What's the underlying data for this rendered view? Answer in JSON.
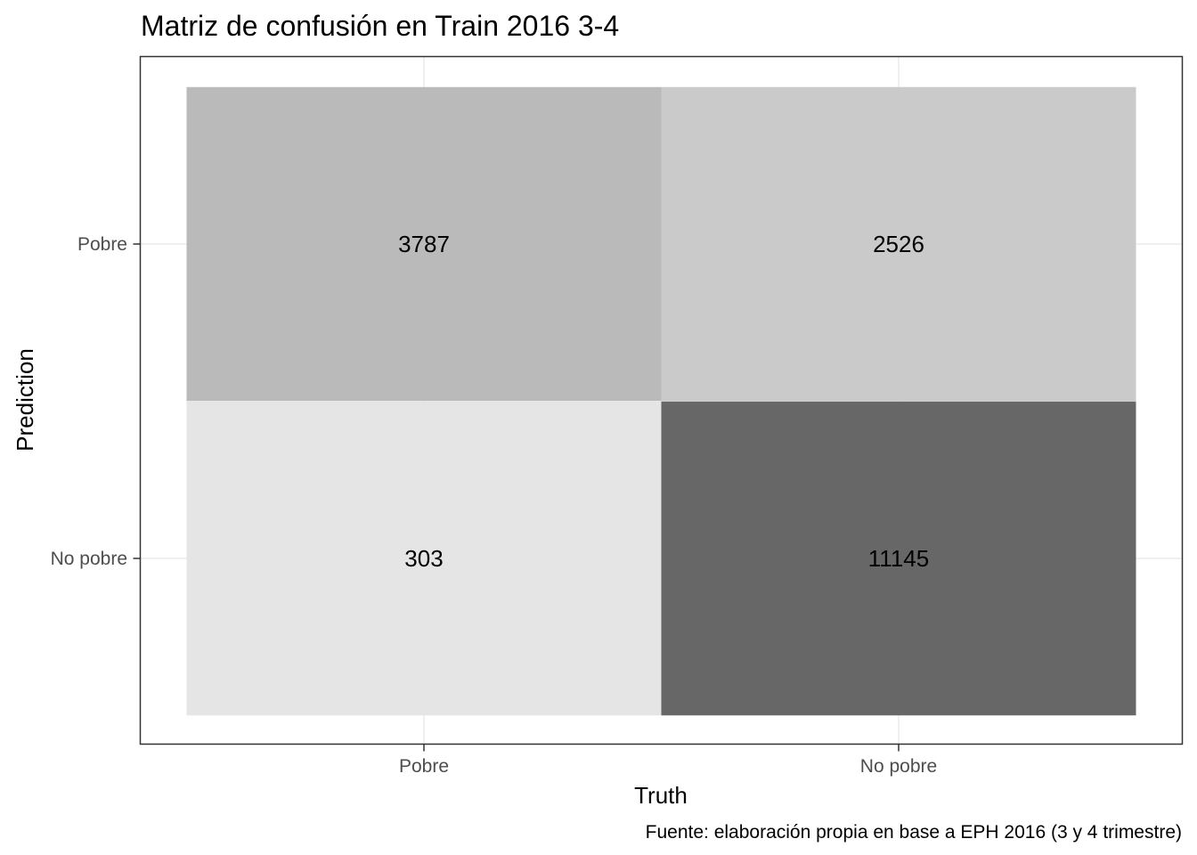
{
  "chart_data": {
    "type": "heatmap",
    "title": "Matriz de confusión en Train 2016 3-4",
    "xlabel": "Truth",
    "ylabel": "Prediction",
    "caption": "Fuente: elaboración propia en base a EPH 2016 (3 y 4 trimestre)",
    "x_categories": [
      "Pobre",
      "No pobre"
    ],
    "y_categories": [
      "Pobre",
      "No pobre"
    ],
    "cells": [
      {
        "truth": "Pobre",
        "prediction": "Pobre",
        "value": 3787,
        "color": "#bababa"
      },
      {
        "truth": "No pobre",
        "prediction": "Pobre",
        "value": 2526,
        "color": "#cacaca"
      },
      {
        "truth": "Pobre",
        "prediction": "No pobre",
        "value": 303,
        "color": "#e5e5e5"
      },
      {
        "truth": "No pobre",
        "prediction": "No pobre",
        "value": 11145,
        "color": "#676767"
      }
    ],
    "grid": true,
    "legend": "none",
    "colors": {
      "panel_border": "#333333",
      "grid": "#ebebeb",
      "tick": "#333333"
    }
  }
}
